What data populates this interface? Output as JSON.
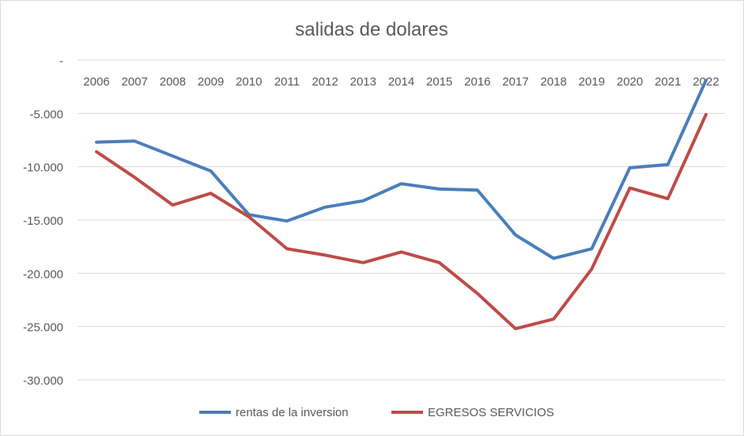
{
  "chart_data": {
    "type": "line",
    "title": "salidas de dolares",
    "xlabel": "",
    "ylabel": "",
    "categories": [
      "2006",
      "2007",
      "2008",
      "2009",
      "2010",
      "2011",
      "2012",
      "2013",
      "2014",
      "2015",
      "2016",
      "2017",
      "2018",
      "2019",
      "2020",
      "2021",
      "2022"
    ],
    "ylim": [
      -30000,
      0
    ],
    "yticks": [
      0,
      -5000,
      -10000,
      -15000,
      -20000,
      -25000,
      -30000
    ],
    "ytick_labels": [
      "-",
      "-5.000",
      "-10.000",
      "-15.000",
      "-20.000",
      "-25.000",
      "-30.000"
    ],
    "grid": true,
    "legend_position": "bottom",
    "series": [
      {
        "name": "rentas de la inversion",
        "color": "#4a7ebb",
        "values": [
          -7700,
          -7600,
          -9000,
          -10400,
          -14500,
          -15100,
          -13800,
          -13200,
          -11600,
          -12100,
          -12200,
          -16400,
          -18600,
          -17700,
          -10100,
          -9800,
          -1900
        ]
      },
      {
        "name": "EGRESOS SERVICIOS",
        "color": "#be4b48",
        "values": [
          -8600,
          -11000,
          -13600,
          -12500,
          -14700,
          -17700,
          -18300,
          -19000,
          -18000,
          -19000,
          -21900,
          -25200,
          -24300,
          -19600,
          -12000,
          -13000,
          -5100
        ]
      }
    ]
  }
}
